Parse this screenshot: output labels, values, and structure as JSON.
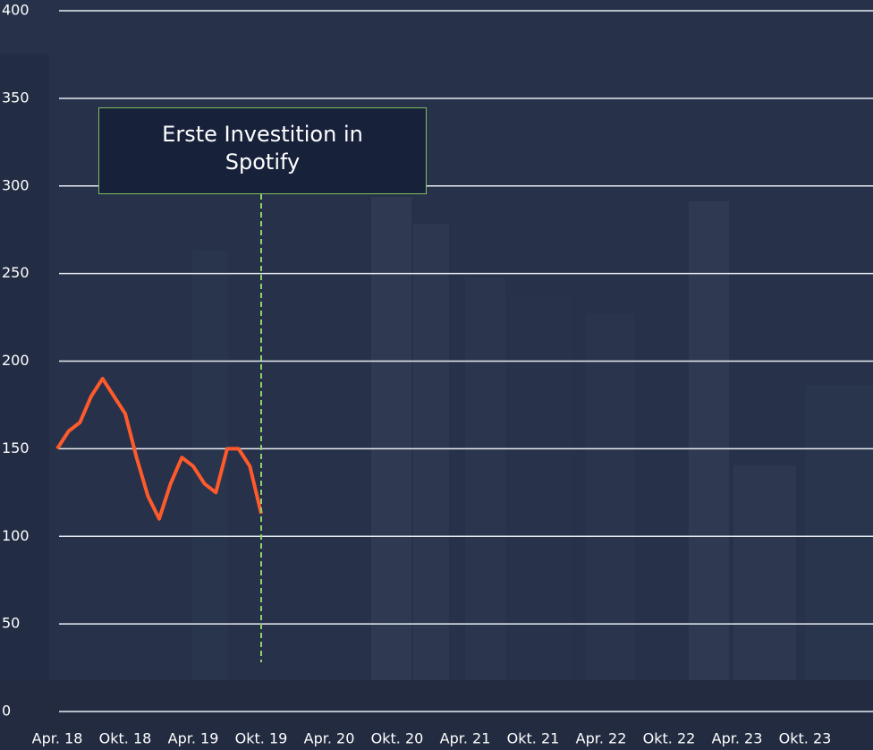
{
  "chart_data": {
    "type": "line",
    "categories": [
      "Apr. 18",
      null,
      null,
      null,
      null,
      null,
      "Okt. 18",
      null,
      null,
      null,
      null,
      null,
      "Apr. 19",
      null,
      null,
      null,
      null,
      null,
      "Okt. 19",
      null,
      null,
      null,
      null,
      null,
      "Apr. 20",
      null,
      null,
      null,
      null,
      null,
      "Okt. 20",
      null,
      null,
      null,
      null,
      null,
      "Apr. 21",
      null,
      null,
      null,
      null,
      null,
      "Okt. 21",
      null,
      null,
      null,
      null,
      null,
      "Apr. 22",
      null,
      null,
      null,
      null,
      null,
      "Okt. 22",
      null,
      null,
      null,
      null,
      null,
      "Apr. 23",
      null,
      null,
      null,
      null,
      null,
      "Okt. 23"
    ],
    "values": [
      150,
      160,
      165,
      180,
      190,
      180,
      170,
      145,
      123,
      110,
      130,
      145,
      140,
      130,
      125,
      150,
      150,
      140,
      113,
      null,
      null,
      null,
      null,
      null,
      null,
      null,
      null,
      null,
      null,
      null,
      null,
      null,
      null,
      null,
      null,
      null,
      null,
      null,
      null,
      null,
      null,
      null,
      null,
      null,
      null,
      null,
      null,
      null,
      null,
      null,
      null,
      null,
      null,
      null,
      null,
      null,
      null,
      null,
      null,
      null,
      null,
      null,
      null,
      null,
      null,
      null,
      null
    ],
    "color": "#ff5a2b",
    "ylim": [
      0,
      400
    ],
    "yticks": [
      0,
      50,
      100,
      150,
      200,
      250,
      300,
      350,
      400
    ],
    "grid": true,
    "annotation": "Erste Investition in Spotify"
  }
}
